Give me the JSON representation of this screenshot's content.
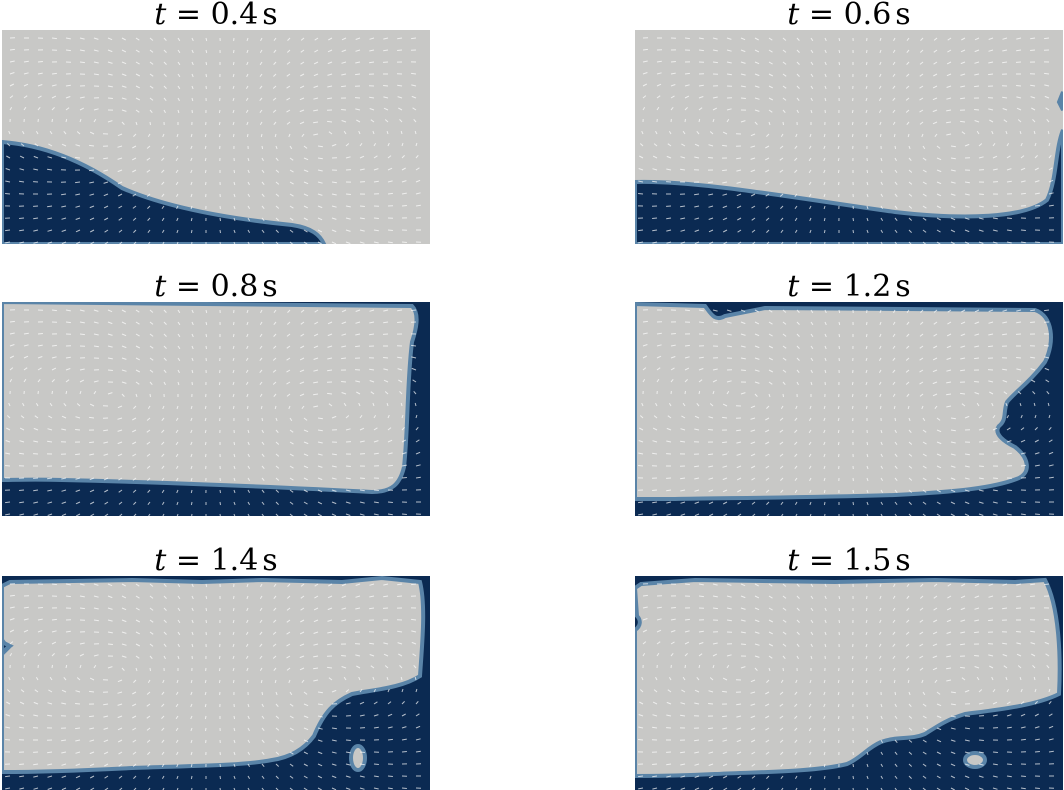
{
  "panels": [
    {
      "t_symbol": "t",
      "equals": "=",
      "value": "0.4",
      "unit": "s"
    },
    {
      "t_symbol": "t",
      "equals": "=",
      "value": "0.6",
      "unit": "s"
    },
    {
      "t_symbol": "t",
      "equals": "=",
      "value": "0.8",
      "unit": "s"
    },
    {
      "t_symbol": "t",
      "equals": "=",
      "value": "1.2",
      "unit": "s"
    },
    {
      "t_symbol": "t",
      "equals": "=",
      "value": "1.4",
      "unit": "s"
    },
    {
      "t_symbol": "t",
      "equals": "=",
      "value": "1.5",
      "unit": "s"
    }
  ],
  "colors": {
    "liquid": "#0b2a52",
    "gas": "#c8c8c6",
    "interface": "#5a84a8",
    "vectors": "#ffffff"
  }
}
